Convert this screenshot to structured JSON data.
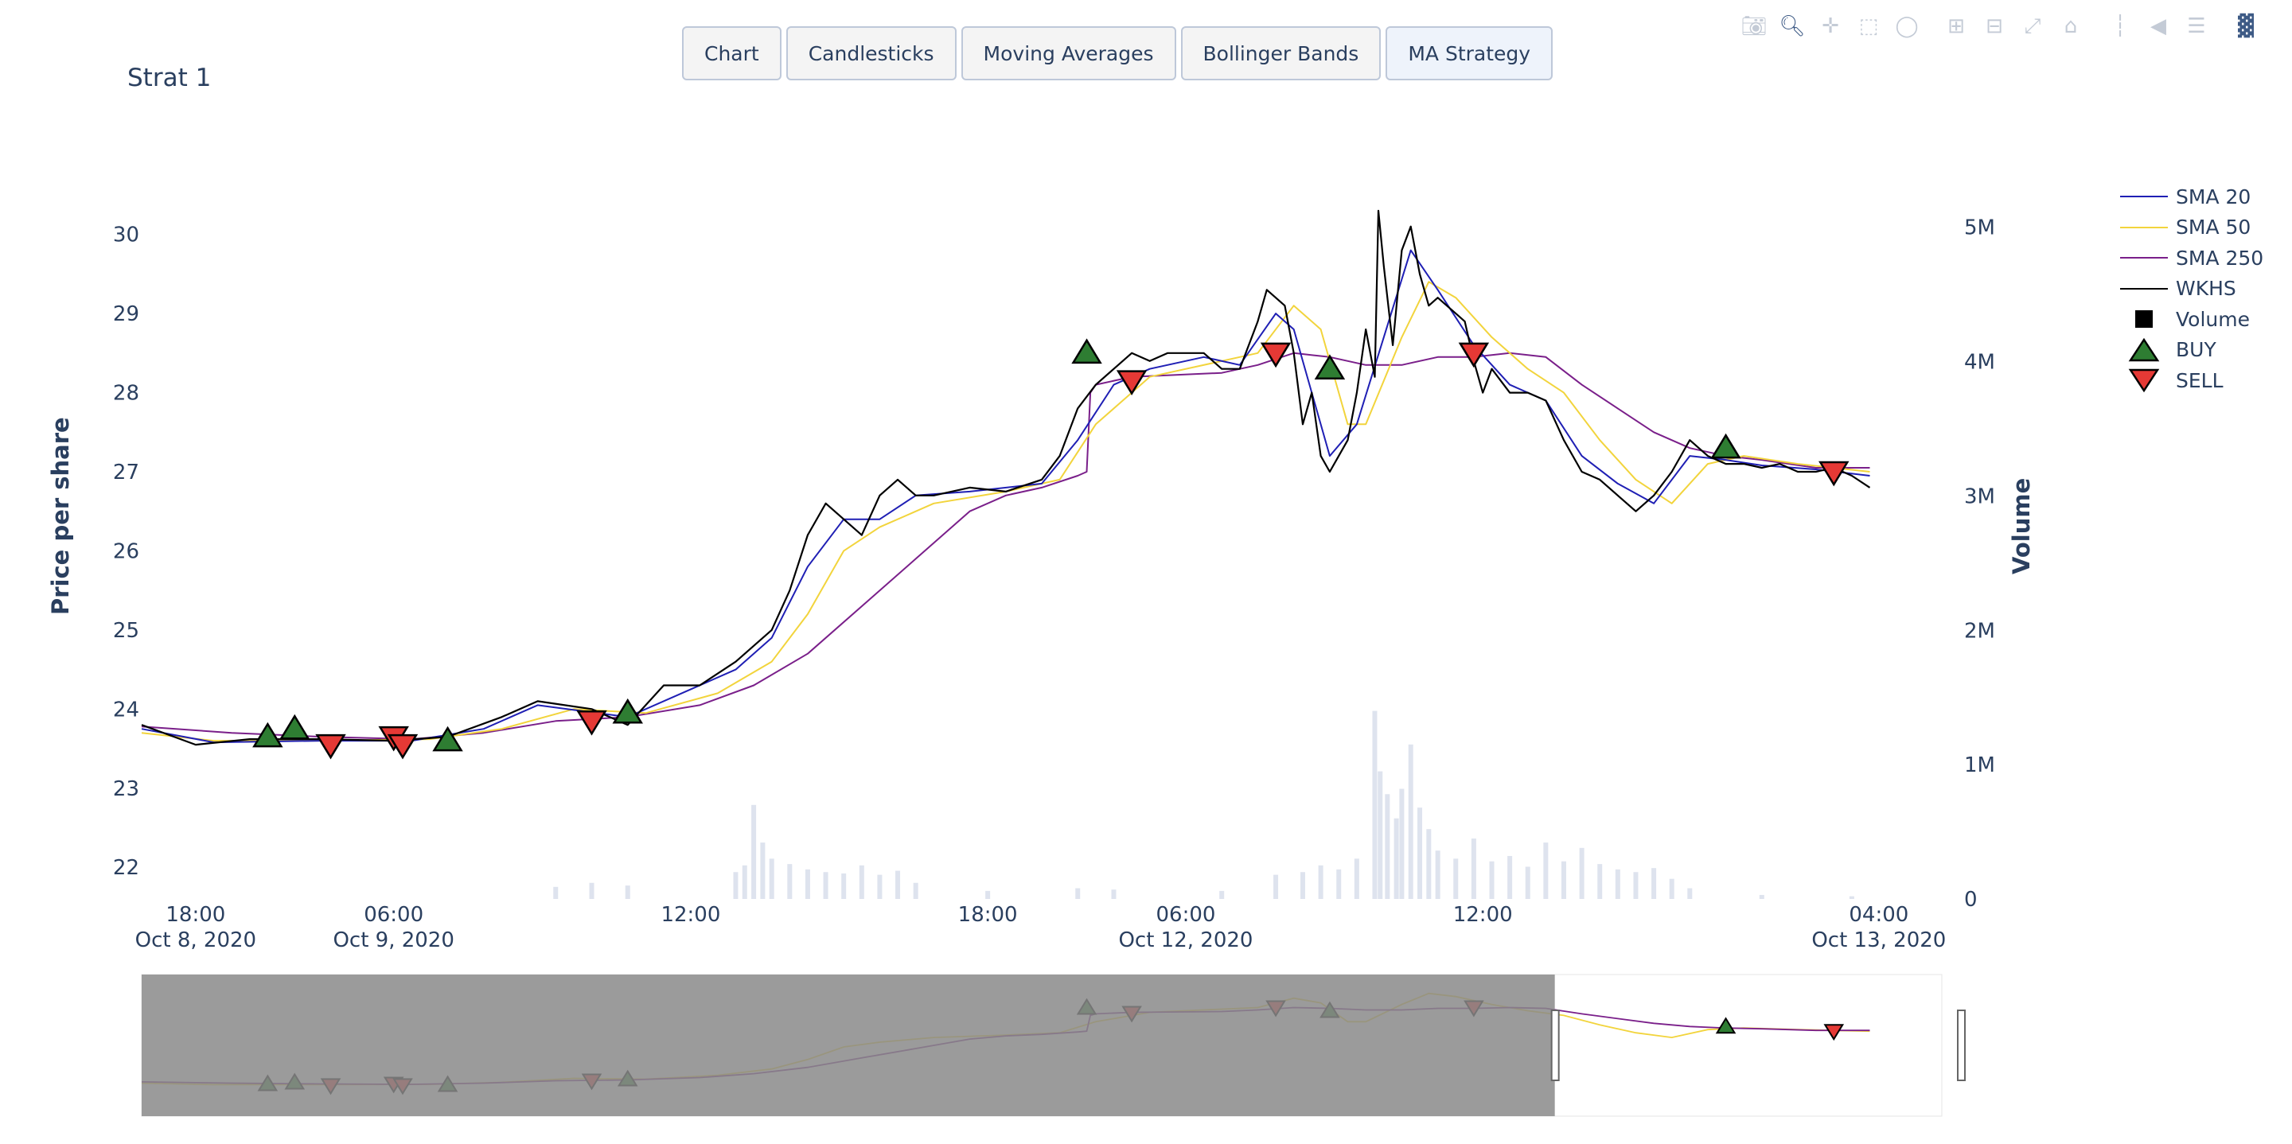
{
  "buttons": [
    "Chart",
    "Candlesticks",
    "Moving Averages",
    "Bollinger Bands",
    "MA Strategy"
  ],
  "active_button": 4,
  "modebar": [
    "camera-icon",
    "zoom-icon",
    "pan-icon",
    "box-select-icon",
    "lasso-icon",
    "zoom-in-icon",
    "zoom-out-icon",
    "autoscale-icon",
    "reset-axes-icon",
    "spike-lines-icon",
    "hover-closest-icon",
    "hover-compare-icon",
    "plotly-logo-icon"
  ],
  "legend": [
    "SMA 20",
    "SMA 50",
    "SMA 250",
    "WKHS",
    "Volume",
    "BUY",
    "SELL"
  ],
  "chart_data": {
    "type": "line",
    "title": "Strat 1",
    "ylabel": "Price per share",
    "y2label": "Volume",
    "ylim": [
      21.6,
      30.6
    ],
    "yticks": [
      "22",
      "23",
      "24",
      "25",
      "26",
      "27",
      "28",
      "29",
      "30"
    ],
    "y2ticks": [
      "0",
      "1M",
      "2M",
      "3M",
      "4M",
      "5M"
    ],
    "y2lim": [
      0,
      5300000
    ],
    "xticks": [
      {
        "t": 0.03,
        "line1": "18:00",
        "line2": "Oct 8, 2020"
      },
      {
        "t": 0.14,
        "line1": "06:00",
        "line2": "Oct 9, 2020"
      },
      {
        "t": 0.305,
        "line1": "12:00",
        "line2": ""
      },
      {
        "t": 0.47,
        "line1": "18:00",
        "line2": ""
      },
      {
        "t": 0.58,
        "line1": "06:00",
        "line2": "Oct 12, 2020"
      },
      {
        "t": 0.745,
        "line1": "12:00",
        "line2": ""
      },
      {
        "t": 0.965,
        "line1": "04:00",
        "line2": "Oct 13, 2020"
      }
    ],
    "series": [
      {
        "name": "WKHS",
        "color": "#000000",
        "points": [
          [
            0,
            23.8
          ],
          [
            0.03,
            23.55
          ],
          [
            0.06,
            23.62
          ],
          [
            0.1,
            23.62
          ],
          [
            0.14,
            23.6
          ],
          [
            0.17,
            23.65
          ],
          [
            0.2,
            23.9
          ],
          [
            0.22,
            24.1
          ],
          [
            0.25,
            24.0
          ],
          [
            0.27,
            23.8
          ],
          [
            0.29,
            24.3
          ],
          [
            0.31,
            24.3
          ],
          [
            0.33,
            24.6
          ],
          [
            0.35,
            25.0
          ],
          [
            0.36,
            25.5
          ],
          [
            0.37,
            26.2
          ],
          [
            0.38,
            26.6
          ],
          [
            0.39,
            26.4
          ],
          [
            0.4,
            26.2
          ],
          [
            0.41,
            26.7
          ],
          [
            0.42,
            26.9
          ],
          [
            0.43,
            26.7
          ],
          [
            0.44,
            26.7
          ],
          [
            0.46,
            26.8
          ],
          [
            0.48,
            26.75
          ],
          [
            0.5,
            26.9
          ],
          [
            0.51,
            27.2
          ],
          [
            0.52,
            27.8
          ],
          [
            0.53,
            28.1
          ],
          [
            0.54,
            28.3
          ],
          [
            0.55,
            28.5
          ],
          [
            0.56,
            28.4
          ],
          [
            0.57,
            28.5
          ],
          [
            0.58,
            28.5
          ],
          [
            0.59,
            28.5
          ],
          [
            0.6,
            28.3
          ],
          [
            0.61,
            28.3
          ],
          [
            0.62,
            28.9
          ],
          [
            0.625,
            29.3
          ],
          [
            0.635,
            29.1
          ],
          [
            0.64,
            28.5
          ],
          [
            0.645,
            27.6
          ],
          [
            0.65,
            28.0
          ],
          [
            0.655,
            27.2
          ],
          [
            0.66,
            27.0
          ],
          [
            0.665,
            27.2
          ],
          [
            0.67,
            27.4
          ],
          [
            0.675,
            28.0
          ],
          [
            0.68,
            28.8
          ],
          [
            0.685,
            28.2
          ],
          [
            0.687,
            30.3
          ],
          [
            0.69,
            29.6
          ],
          [
            0.695,
            28.6
          ],
          [
            0.7,
            29.8
          ],
          [
            0.705,
            30.1
          ],
          [
            0.71,
            29.5
          ],
          [
            0.715,
            29.1
          ],
          [
            0.72,
            29.2
          ],
          [
            0.73,
            29.0
          ],
          [
            0.735,
            28.9
          ],
          [
            0.74,
            28.4
          ],
          [
            0.745,
            28.0
          ],
          [
            0.75,
            28.3
          ],
          [
            0.76,
            28.0
          ],
          [
            0.77,
            28.0
          ],
          [
            0.78,
            27.9
          ],
          [
            0.79,
            27.4
          ],
          [
            0.8,
            27.0
          ],
          [
            0.81,
            26.9
          ],
          [
            0.82,
            26.7
          ],
          [
            0.83,
            26.5
          ],
          [
            0.84,
            26.7
          ],
          [
            0.85,
            27.0
          ],
          [
            0.86,
            27.4
          ],
          [
            0.87,
            27.2
          ],
          [
            0.88,
            27.1
          ],
          [
            0.89,
            27.1
          ],
          [
            0.9,
            27.05
          ],
          [
            0.91,
            27.1
          ],
          [
            0.92,
            27.0
          ],
          [
            0.93,
            27.0
          ],
          [
            0.94,
            27.05
          ],
          [
            0.95,
            26.95
          ],
          [
            0.96,
            26.8
          ]
        ]
      },
      {
        "name": "SMA 20",
        "color": "#1f1fb4",
        "points": [
          [
            0,
            23.75
          ],
          [
            0.04,
            23.58
          ],
          [
            0.1,
            23.6
          ],
          [
            0.15,
            23.6
          ],
          [
            0.19,
            23.75
          ],
          [
            0.22,
            24.05
          ],
          [
            0.27,
            23.9
          ],
          [
            0.3,
            24.2
          ],
          [
            0.33,
            24.5
          ],
          [
            0.35,
            24.9
          ],
          [
            0.37,
            25.8
          ],
          [
            0.39,
            26.4
          ],
          [
            0.41,
            26.4
          ],
          [
            0.43,
            26.7
          ],
          [
            0.46,
            26.75
          ],
          [
            0.5,
            26.85
          ],
          [
            0.52,
            27.4
          ],
          [
            0.54,
            28.1
          ],
          [
            0.56,
            28.3
          ],
          [
            0.59,
            28.45
          ],
          [
            0.61,
            28.35
          ],
          [
            0.63,
            29.0
          ],
          [
            0.64,
            28.8
          ],
          [
            0.65,
            28.0
          ],
          [
            0.66,
            27.2
          ],
          [
            0.675,
            27.6
          ],
          [
            0.69,
            28.7
          ],
          [
            0.705,
            29.8
          ],
          [
            0.72,
            29.3
          ],
          [
            0.74,
            28.6
          ],
          [
            0.76,
            28.1
          ],
          [
            0.78,
            27.9
          ],
          [
            0.8,
            27.2
          ],
          [
            0.82,
            26.85
          ],
          [
            0.84,
            26.6
          ],
          [
            0.86,
            27.2
          ],
          [
            0.88,
            27.15
          ],
          [
            0.9,
            27.08
          ],
          [
            0.93,
            27.03
          ],
          [
            0.96,
            26.95
          ]
        ]
      },
      {
        "name": "SMA 50",
        "color": "#f2d43c",
        "points": [
          [
            0,
            23.7
          ],
          [
            0.04,
            23.6
          ],
          [
            0.1,
            23.6
          ],
          [
            0.16,
            23.62
          ],
          [
            0.2,
            23.75
          ],
          [
            0.24,
            24.0
          ],
          [
            0.28,
            23.95
          ],
          [
            0.32,
            24.2
          ],
          [
            0.35,
            24.6
          ],
          [
            0.37,
            25.2
          ],
          [
            0.39,
            26.0
          ],
          [
            0.41,
            26.3
          ],
          [
            0.44,
            26.6
          ],
          [
            0.48,
            26.75
          ],
          [
            0.51,
            26.9
          ],
          [
            0.53,
            27.6
          ],
          [
            0.56,
            28.2
          ],
          [
            0.6,
            28.4
          ],
          [
            0.62,
            28.5
          ],
          [
            0.64,
            29.1
          ],
          [
            0.655,
            28.8
          ],
          [
            0.67,
            27.6
          ],
          [
            0.68,
            27.6
          ],
          [
            0.7,
            28.7
          ],
          [
            0.715,
            29.4
          ],
          [
            0.73,
            29.2
          ],
          [
            0.75,
            28.7
          ],
          [
            0.77,
            28.3
          ],
          [
            0.79,
            28.0
          ],
          [
            0.81,
            27.4
          ],
          [
            0.83,
            26.9
          ],
          [
            0.85,
            26.6
          ],
          [
            0.87,
            27.1
          ],
          [
            0.89,
            27.2
          ],
          [
            0.92,
            27.1
          ],
          [
            0.96,
            27.0
          ]
        ]
      },
      {
        "name": "SMA 250",
        "color": "#7a1f8a",
        "points": [
          [
            0,
            23.78
          ],
          [
            0.05,
            23.7
          ],
          [
            0.1,
            23.65
          ],
          [
            0.15,
            23.62
          ],
          [
            0.19,
            23.7
          ],
          [
            0.23,
            23.85
          ],
          [
            0.27,
            23.9
          ],
          [
            0.31,
            24.05
          ],
          [
            0.34,
            24.3
          ],
          [
            0.37,
            24.7
          ],
          [
            0.4,
            25.3
          ],
          [
            0.43,
            25.9
          ],
          [
            0.46,
            26.5
          ],
          [
            0.48,
            26.7
          ],
          [
            0.5,
            26.8
          ],
          [
            0.52,
            26.95
          ],
          [
            0.525,
            27.0
          ],
          [
            0.527,
            28.0
          ],
          [
            0.53,
            28.1
          ],
          [
            0.55,
            28.2
          ],
          [
            0.6,
            28.25
          ],
          [
            0.62,
            28.35
          ],
          [
            0.64,
            28.5
          ],
          [
            0.66,
            28.45
          ],
          [
            0.68,
            28.35
          ],
          [
            0.7,
            28.35
          ],
          [
            0.72,
            28.45
          ],
          [
            0.74,
            28.45
          ],
          [
            0.76,
            28.5
          ],
          [
            0.78,
            28.45
          ],
          [
            0.8,
            28.1
          ],
          [
            0.82,
            27.8
          ],
          [
            0.84,
            27.5
          ],
          [
            0.86,
            27.3
          ],
          [
            0.88,
            27.2
          ],
          [
            0.9,
            27.15
          ],
          [
            0.93,
            27.05
          ],
          [
            0.96,
            27.05
          ]
        ]
      }
    ],
    "buy_signals": [
      [
        0.07,
        23.65
      ],
      [
        0.085,
        23.75
      ],
      [
        0.17,
        23.6
      ],
      [
        0.27,
        23.95
      ],
      [
        0.525,
        28.5
      ],
      [
        0.66,
        28.3
      ],
      [
        0.88,
        27.3
      ]
    ],
    "sell_signals": [
      [
        0.105,
        23.55
      ],
      [
        0.14,
        23.65
      ],
      [
        0.145,
        23.55
      ],
      [
        0.25,
        23.85
      ],
      [
        0.55,
        28.15
      ],
      [
        0.63,
        28.5
      ],
      [
        0.74,
        28.5
      ],
      [
        0.94,
        27.0
      ]
    ],
    "volume": [
      {
        "t": 0.23,
        "v": 90000
      },
      {
        "t": 0.25,
        "v": 120000
      },
      {
        "t": 0.27,
        "v": 100000
      },
      {
        "t": 0.33,
        "v": 200000
      },
      {
        "t": 0.335,
        "v": 250000
      },
      {
        "t": 0.34,
        "v": 700000
      },
      {
        "t": 0.345,
        "v": 420000
      },
      {
        "t": 0.35,
        "v": 300000
      },
      {
        "t": 0.36,
        "v": 260000
      },
      {
        "t": 0.37,
        "v": 220000
      },
      {
        "t": 0.38,
        "v": 200000
      },
      {
        "t": 0.39,
        "v": 190000
      },
      {
        "t": 0.4,
        "v": 250000
      },
      {
        "t": 0.41,
        "v": 180000
      },
      {
        "t": 0.42,
        "v": 210000
      },
      {
        "t": 0.43,
        "v": 120000
      },
      {
        "t": 0.47,
        "v": 60000
      },
      {
        "t": 0.52,
        "v": 80000
      },
      {
        "t": 0.54,
        "v": 70000
      },
      {
        "t": 0.6,
        "v": 60000
      },
      {
        "t": 0.63,
        "v": 180000
      },
      {
        "t": 0.645,
        "v": 200000
      },
      {
        "t": 0.655,
        "v": 250000
      },
      {
        "t": 0.665,
        "v": 220000
      },
      {
        "t": 0.675,
        "v": 300000
      },
      {
        "t": 0.685,
        "v": 1400000
      },
      {
        "t": 0.688,
        "v": 950000
      },
      {
        "t": 0.692,
        "v": 780000
      },
      {
        "t": 0.697,
        "v": 600000
      },
      {
        "t": 0.7,
        "v": 820000
      },
      {
        "t": 0.705,
        "v": 1150000
      },
      {
        "t": 0.71,
        "v": 680000
      },
      {
        "t": 0.715,
        "v": 520000
      },
      {
        "t": 0.72,
        "v": 360000
      },
      {
        "t": 0.73,
        "v": 300000
      },
      {
        "t": 0.74,
        "v": 450000
      },
      {
        "t": 0.75,
        "v": 280000
      },
      {
        "t": 0.76,
        "v": 320000
      },
      {
        "t": 0.77,
        "v": 240000
      },
      {
        "t": 0.78,
        "v": 420000
      },
      {
        "t": 0.79,
        "v": 280000
      },
      {
        "t": 0.8,
        "v": 380000
      },
      {
        "t": 0.81,
        "v": 260000
      },
      {
        "t": 0.82,
        "v": 220000
      },
      {
        "t": 0.83,
        "v": 200000
      },
      {
        "t": 0.84,
        "v": 230000
      },
      {
        "t": 0.85,
        "v": 150000
      },
      {
        "t": 0.86,
        "v": 80000
      },
      {
        "t": 0.9,
        "v": 30000
      },
      {
        "t": 0.95,
        "v": 20000
      }
    ],
    "rangeslider": {
      "selected": [
        0,
        0.785
      ]
    }
  }
}
